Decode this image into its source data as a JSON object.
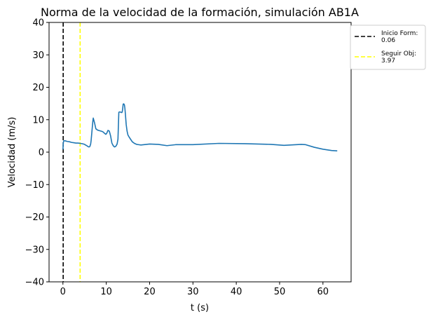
{
  "chart_data": {
    "type": "line",
    "title": "Norma de la velocidad de la formación, simulación AB1A",
    "xlabel": "t (s)",
    "ylabel": "Velocidad (m/s)",
    "xlim": [
      -3.2,
      66.5
    ],
    "ylim": [
      -40,
      40
    ],
    "xticks": [
      0,
      10,
      20,
      30,
      40,
      50,
      60
    ],
    "yticks": [
      -40,
      -30,
      -20,
      -10,
      0,
      10,
      20,
      30,
      40
    ],
    "ytick_labels": [
      "−40",
      "−30",
      "−20",
      "−10",
      "0",
      "10",
      "20",
      "30",
      "40"
    ],
    "grid": false,
    "legend_position": "outside-top-right",
    "series": [
      {
        "color": "#1f77b4",
        "x": [
          0.0,
          0.1,
          0.2,
          0.5,
          1,
          1.5,
          2,
          2.5,
          3,
          3.5,
          4,
          4.5,
          5,
          5.2,
          5.5,
          5.8,
          6.0,
          6.2,
          6.4,
          6.5,
          6.6,
          6.7,
          6.8,
          6.9,
          7.0,
          7.3,
          7.6,
          8,
          8.5,
          9,
          9.3,
          9.6,
          9.9,
          10.1,
          10.4,
          10.7,
          11.0,
          11.3,
          11.6,
          11.9,
          12.2,
          12.5,
          12.7,
          12.9,
          13.1,
          13.4,
          13.6,
          13.7,
          13.8,
          13.9,
          14.0,
          14.1,
          14.2,
          14.3,
          14.4,
          14.6,
          14.8,
          15.0,
          15.3,
          15.6,
          16,
          16.5,
          17,
          17.5,
          18,
          20,
          22,
          24,
          26,
          30,
          36,
          42,
          48,
          51,
          55,
          56,
          58,
          60,
          62,
          63.3
        ],
        "y": [
          0.8,
          3.0,
          3.5,
          3.5,
          3.3,
          3.2,
          3.0,
          2.9,
          2.8,
          2.8,
          2.7,
          2.6,
          2.4,
          2.2,
          2.0,
          1.7,
          1.6,
          1.7,
          2.5,
          3.5,
          5.0,
          6.5,
          8.0,
          9.5,
          10.5,
          9.0,
          7.2,
          6.8,
          6.6,
          6.4,
          6.2,
          5.8,
          5.5,
          5.8,
          6.7,
          6.5,
          5.0,
          2.8,
          2.0,
          1.6,
          1.8,
          2.5,
          4.0,
          12.3,
          12.4,
          12.3,
          12.2,
          12.5,
          13.5,
          14.8,
          14.9,
          14.8,
          14.5,
          13.5,
          12.0,
          8.5,
          6.5,
          5.3,
          4.6,
          4.0,
          3.2,
          2.7,
          2.4,
          2.3,
          2.2,
          2.5,
          2.4,
          2.0,
          2.3,
          2.3,
          2.7,
          2.6,
          2.4,
          2.1,
          2.4,
          2.3,
          1.5,
          0.9,
          0.5,
          0.4
        ]
      }
    ],
    "vlines": [
      {
        "x": 0.06,
        "color": "#000000",
        "label": "Inicio Form:\n0.06"
      },
      {
        "x": 3.97,
        "color": "#ffff00",
        "label": "Seguir Obj:\n3.97"
      }
    ]
  }
}
